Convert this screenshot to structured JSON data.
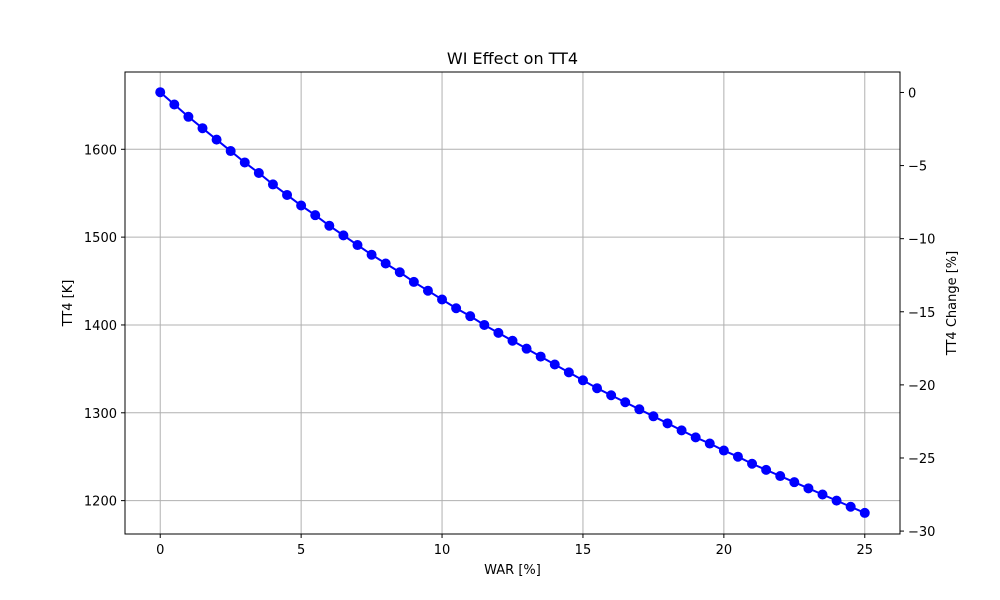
{
  "chart_data": {
    "type": "line",
    "title": "WI Effect on TT4",
    "xlabel": "WAR [%]",
    "ylabel": "TT4 [K]",
    "ylabel_right": "TT4 Change [%]",
    "xlim": [
      -1.25,
      26.25
    ],
    "ylim": [
      1162,
      1688
    ],
    "ylim_right": [
      -30.2,
      1.4
    ],
    "x_ticks": [
      0,
      5,
      10,
      15,
      20,
      25
    ],
    "y_ticks": [
      1200,
      1300,
      1400,
      1500,
      1600
    ],
    "y_ticks_right": [
      0,
      -5,
      -10,
      -15,
      -20,
      -25,
      -30
    ],
    "x_tick_labels": [
      "0",
      "5",
      "10",
      "15",
      "20",
      "25"
    ],
    "y_tick_labels": [
      "1200",
      "1300",
      "1400",
      "1500",
      "1600"
    ],
    "y_tick_labels_right": [
      "0",
      "−5",
      "−10",
      "−15",
      "−20",
      "−25",
      "−30"
    ],
    "grid": true,
    "series": [
      {
        "color": "#0000ff",
        "marker": "circle",
        "x": [
          0,
          0.5,
          1,
          1.5,
          2,
          2.5,
          3,
          3.5,
          4,
          4.5,
          5,
          5.5,
          6,
          6.5,
          7,
          7.5,
          8,
          8.5,
          9,
          9.5,
          10,
          10.5,
          11,
          11.5,
          12,
          12.5,
          13,
          13.5,
          14,
          14.5,
          15,
          15.5,
          16,
          16.5,
          17,
          17.5,
          18,
          18.5,
          19,
          19.5,
          20,
          20.5,
          21,
          21.5,
          22,
          22.5,
          23,
          23.5,
          24,
          24.5,
          25
        ],
        "y": [
          1665,
          1651,
          1637,
          1624,
          1611,
          1598,
          1585,
          1573,
          1560,
          1548,
          1536,
          1525,
          1513,
          1502,
          1491,
          1480,
          1470,
          1460,
          1449,
          1439,
          1429,
          1419,
          1410,
          1400,
          1391,
          1382,
          1373,
          1364,
          1355,
          1346,
          1337,
          1328,
          1320,
          1312,
          1304,
          1296,
          1288,
          1280,
          1272,
          1265,
          1257,
          1250,
          1242,
          1235,
          1228,
          1221,
          1214,
          1207,
          1200,
          1193,
          1186
        ]
      }
    ]
  }
}
